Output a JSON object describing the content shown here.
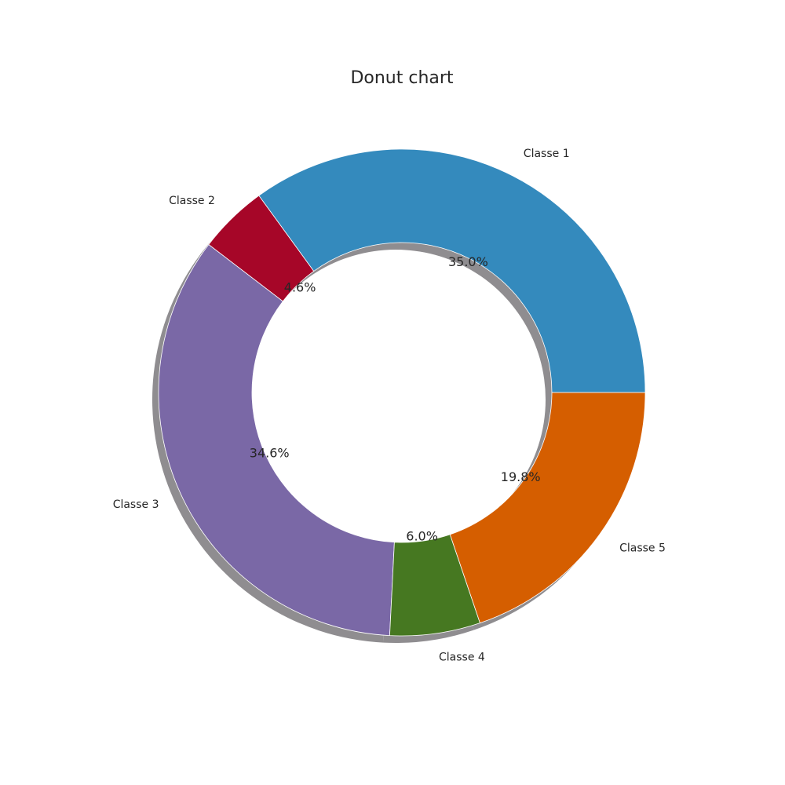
{
  "chart_data": {
    "type": "pie",
    "variant": "donut",
    "title": "Donut chart",
    "start_angle_deg": 0,
    "direction": "counterclockwise",
    "shadow": true,
    "slices": [
      {
        "label": "Classe 1",
        "value": 35.0,
        "pct_label": "35.0%",
        "color": "#348ABD"
      },
      {
        "label": "Classe 2",
        "value": 4.6,
        "pct_label": "4.6%",
        "color": "#A60628"
      },
      {
        "label": "Classe 3",
        "value": 34.6,
        "pct_label": "34.6%",
        "color": "#7A68A6"
      },
      {
        "label": "Classe 4",
        "value": 6.0,
        "pct_label": "6.0%",
        "color": "#467821"
      },
      {
        "label": "Classe 5",
        "value": 19.8,
        "pct_label": "19.8%",
        "color": "#D55E00"
      }
    ]
  }
}
